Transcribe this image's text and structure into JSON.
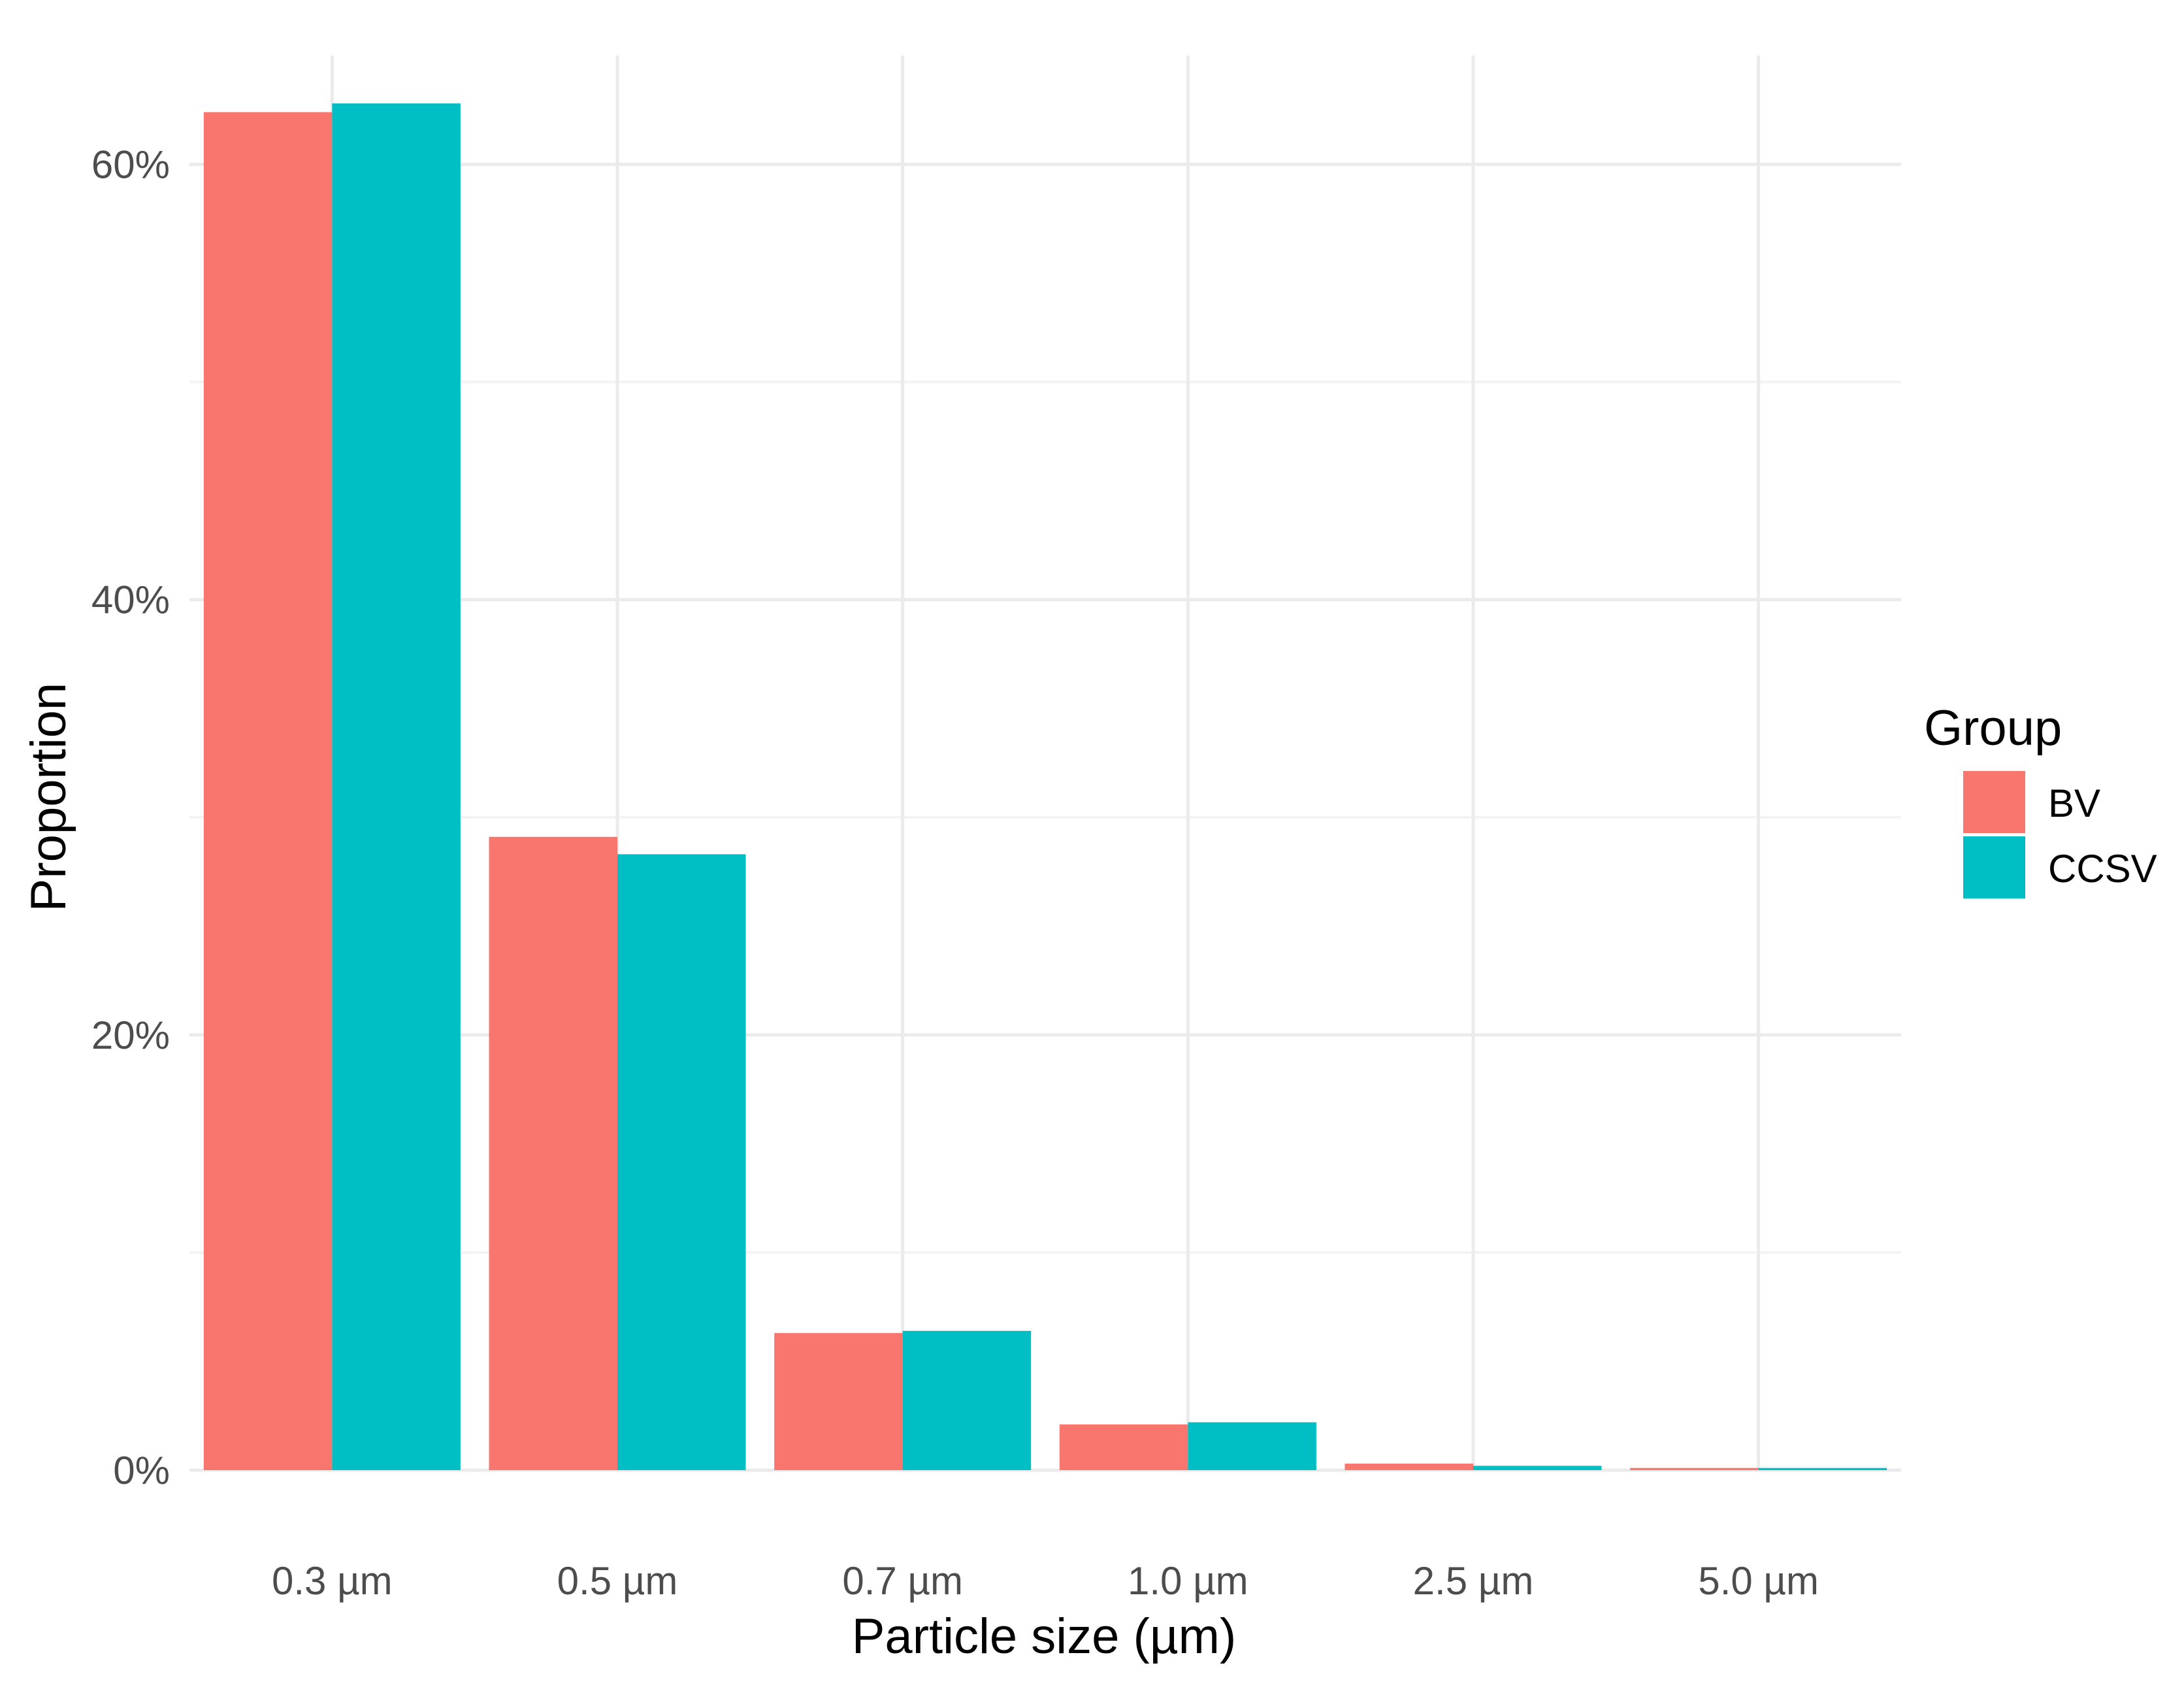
{
  "chart_data": {
    "type": "bar",
    "xlabel": "Particle size (µm)",
    "ylabel": "Proportion",
    "categories": [
      "0.3 µm",
      "0.5 µm",
      "0.7 µm",
      "1.0 µm",
      "2.5 µm",
      "5.0 µm"
    ],
    "series": [
      {
        "name": "BV",
        "color": "#F8766D",
        "values": [
          62.4,
          29.1,
          6.3,
          2.1,
          0.3,
          0.1
        ]
      },
      {
        "name": "CCSV",
        "color": "#00BFC4",
        "values": [
          62.8,
          28.3,
          6.4,
          2.2,
          0.2,
          0.1
        ]
      }
    ],
    "ylim": [
      0,
      65
    ],
    "yticks": [
      0,
      20,
      40,
      60
    ],
    "ytick_labels": [
      "0%",
      "20%",
      "40%",
      "60%"
    ],
    "grid": true,
    "legend": {
      "title": "Group",
      "position": "right"
    }
  }
}
